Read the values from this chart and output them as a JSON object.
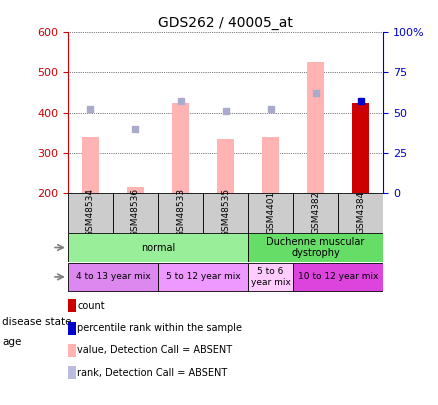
{
  "title": "GDS262 / 40005_at",
  "samples": [
    "GSM48534",
    "GSM48536",
    "GSM48533",
    "GSM48535",
    "GSM4401",
    "GSM4382",
    "GSM4384"
  ],
  "bar_values": [
    340,
    215,
    425,
    335,
    340,
    525,
    425
  ],
  "bar_colors": [
    "#ffb3b3",
    "#ffb3b3",
    "#ffb3b3",
    "#ffb3b3",
    "#ffb3b3",
    "#ffb3b3",
    "#cc0000"
  ],
  "rank_dots": [
    410,
    360,
    430,
    405,
    410,
    450,
    430
  ],
  "rank_dot_colors": [
    "#aaaacc",
    "#aaaacc",
    "#aaaacc",
    "#aaaacc",
    "#aaaacc",
    "#aaaacc",
    "#0000cc"
  ],
  "ymin": 200,
  "ymax": 600,
  "yticks_left": [
    200,
    300,
    400,
    500,
    600
  ],
  "yticks_right": [
    0,
    25,
    50,
    75,
    100
  ],
  "ytick_labels_right": [
    "0",
    "25",
    "50",
    "75",
    "100%"
  ],
  "left_axis_color": "#cc0000",
  "right_axis_color": "#0000cc",
  "disease_state_groups": [
    {
      "label": "normal",
      "start": 0,
      "end": 4,
      "color": "#99ee99"
    },
    {
      "label": "Duchenne muscular\ndystrophy",
      "start": 4,
      "end": 7,
      "color": "#66dd66"
    }
  ],
  "age_groups": [
    {
      "label": "4 to 13 year mix",
      "start": 0,
      "end": 2,
      "color": "#dd88ee"
    },
    {
      "label": "5 to 12 year mix",
      "start": 2,
      "end": 4,
      "color": "#ee99ff"
    },
    {
      "label": "5 to 6\nyear mix",
      "start": 4,
      "end": 5,
      "color": "#ffccff"
    },
    {
      "label": "10 to 12 year mix",
      "start": 5,
      "end": 7,
      "color": "#dd44dd"
    }
  ],
  "legend_items": [
    {
      "color": "#cc0000",
      "label": "count"
    },
    {
      "color": "#0000cc",
      "label": "percentile rank within the sample"
    },
    {
      "color": "#ffb3b3",
      "label": "value, Detection Call = ABSENT"
    },
    {
      "color": "#bbbbdd",
      "label": "rank, Detection Call = ABSENT"
    }
  ],
  "n_samples": 7
}
